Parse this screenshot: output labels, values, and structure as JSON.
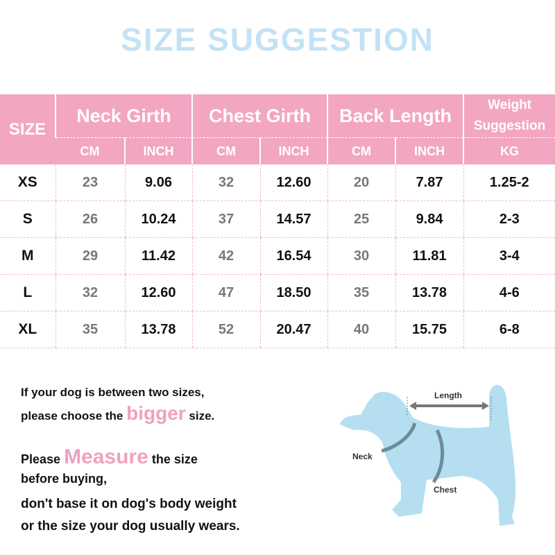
{
  "title": "SIZE SUGGESTION",
  "colors": {
    "header_pink": "#f2a6c2",
    "title_blue": "#c3e2f6",
    "dog_blue": "#b5dff0",
    "highlight_pink": "#f0a0c0"
  },
  "table": {
    "size_header": "SIZE",
    "groups": [
      "Neck Girth",
      "Chest Girth",
      "Back Length",
      "Weight Suggestion"
    ],
    "units": [
      "CM",
      "INCH",
      "CM",
      "INCH",
      "CM",
      "INCH",
      "KG"
    ],
    "rows": [
      [
        "XS",
        "23",
        "9.06",
        "32",
        "12.60",
        "20",
        "7.87",
        "1.25-2"
      ],
      [
        "S",
        "26",
        "10.24",
        "37",
        "14.57",
        "25",
        "9.84",
        "2-3"
      ],
      [
        "M",
        "29",
        "11.42",
        "42",
        "16.54",
        "30",
        "11.81",
        "3-4"
      ],
      [
        "L",
        "32",
        "12.60",
        "47",
        "18.50",
        "35",
        "13.78",
        "4-6"
      ],
      [
        "XL",
        "35",
        "13.78",
        "52",
        "20.47",
        "40",
        "15.75",
        "6-8"
      ]
    ]
  },
  "notes": {
    "line1": "If your dog is between two sizes,",
    "line2_a": "please choose the",
    "line2_b": "bigger",
    "line2_c": "size.",
    "line3_a": "Please",
    "line3_b": "Measure",
    "line3_c": "the size",
    "line4": "before buying,",
    "line5": "don't base it on dog's body weight",
    "line6": "or the size your  dog usually wears."
  },
  "diagram": {
    "length": "Length",
    "neck": "Neck",
    "chest": "Chest"
  }
}
